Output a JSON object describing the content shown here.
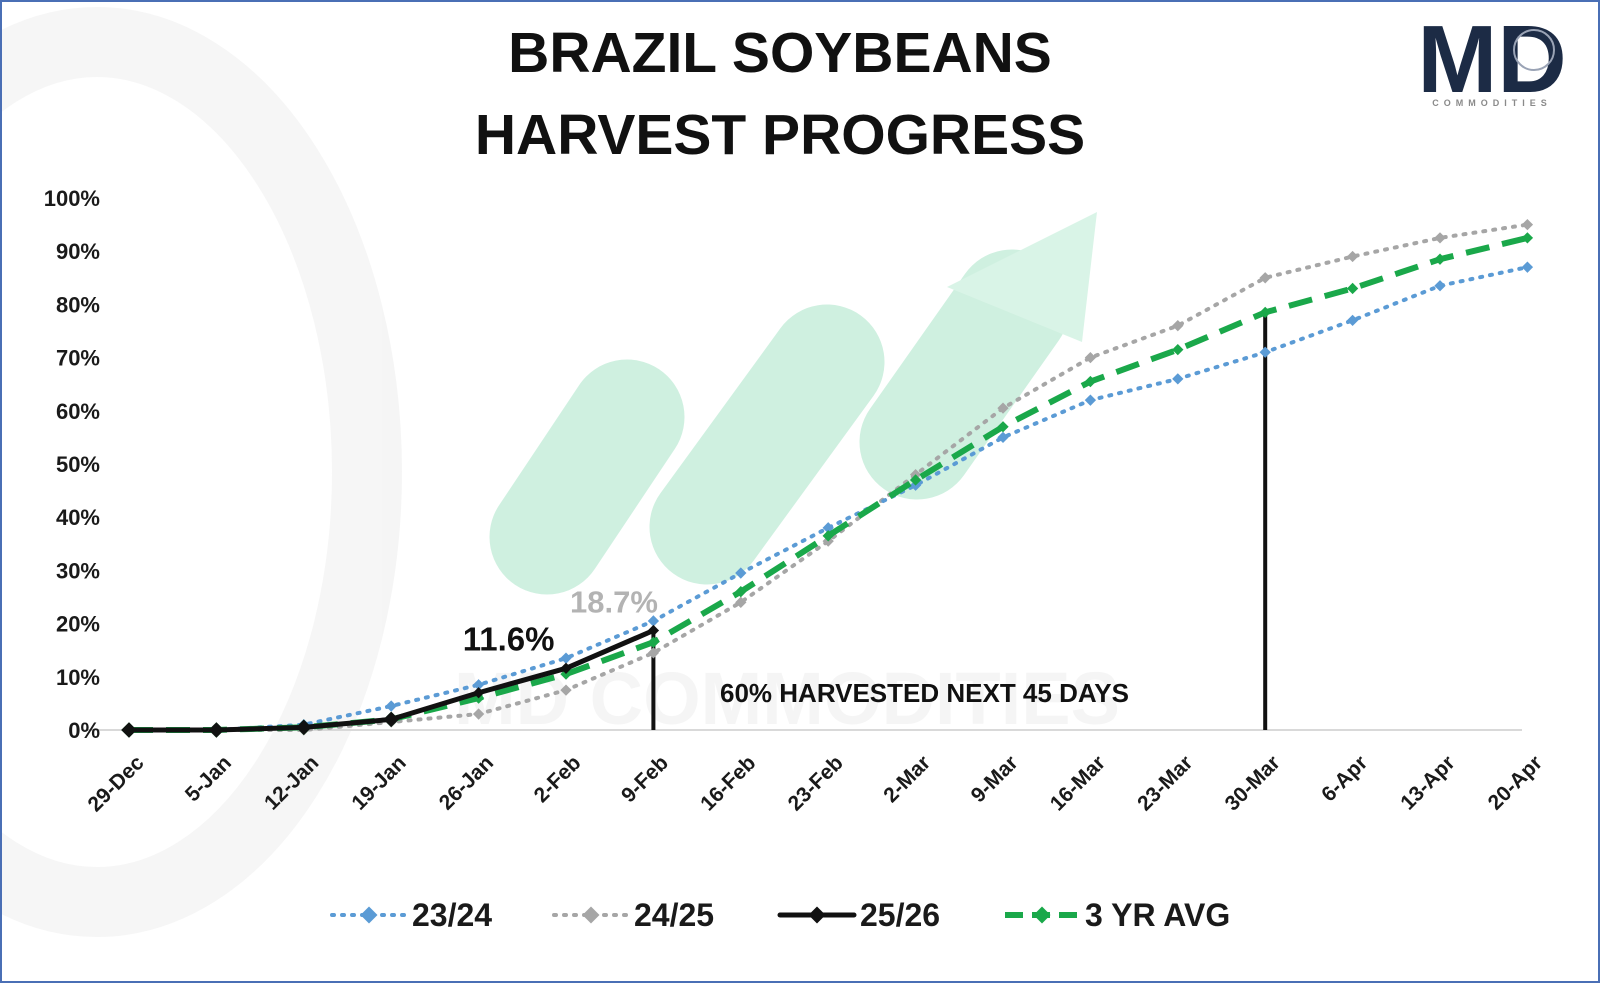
{
  "chart_data": {
    "type": "line",
    "title": [
      "BRAZIL SOYBEANS",
      "HARVEST PROGRESS"
    ],
    "xlabel": "",
    "ylabel": "",
    "ylim": [
      0,
      100
    ],
    "y_ticks": [
      "0%",
      "10%",
      "20%",
      "30%",
      "40%",
      "50%",
      "60%",
      "70%",
      "80%",
      "90%",
      "100%"
    ],
    "categories": [
      "29-Dec",
      "5-Jan",
      "12-Jan",
      "19-Jan",
      "26-Jan",
      "2-Feb",
      "9-Feb",
      "16-Feb",
      "23-Feb",
      "2-Mar",
      "9-Mar",
      "16-Mar",
      "23-Mar",
      "30-Mar",
      "6-Apr",
      "13-Apr",
      "20-Apr"
    ],
    "grid": false,
    "legend_position": "bottom",
    "series": [
      {
        "name": "23/24",
        "color": "#5b9bd5",
        "style": "dotted",
        "values": [
          0,
          0,
          1,
          4.5,
          8.5,
          13.5,
          20.5,
          29.5,
          38,
          46,
          55,
          62,
          66,
          71,
          77,
          83.5,
          87
        ]
      },
      {
        "name": "24/25",
        "color": "#a6a6a6",
        "style": "dotted",
        "values": [
          0,
          0,
          0,
          1.5,
          3,
          7.5,
          14.5,
          24,
          35.5,
          48,
          60.5,
          70,
          76,
          85,
          89,
          92.5,
          95
        ]
      },
      {
        "name": "25/26",
        "color": "#111111",
        "style": "solid",
        "values": [
          0,
          0,
          0.5,
          2,
          7,
          11.6,
          18.7,
          null,
          null,
          null,
          null,
          null,
          null,
          null,
          null,
          null,
          null
        ]
      },
      {
        "name": "3 YR AVG",
        "color": "#1aa84a",
        "style": "dashed",
        "values": [
          0,
          0,
          0.5,
          2,
          6,
          10.5,
          16.5,
          26,
          36.5,
          47,
          57,
          65.5,
          71.5,
          78.5,
          83,
          88.5,
          92.5
        ]
      }
    ],
    "annotations": {
      "label_1": "11.6%",
      "label_2": "18.7%",
      "banner": "60% HARVESTED NEXT 45 DAYS",
      "marker_categories": [
        "9-Feb",
        "30-Mar"
      ]
    }
  },
  "branding": {
    "logo_letters": "MD",
    "logo_subtitle": "COMMODITIES",
    "logo_color": "#1c2b45",
    "watermark_text": "MD COMMODITIES",
    "watermark_color": "#9fe0bf"
  }
}
